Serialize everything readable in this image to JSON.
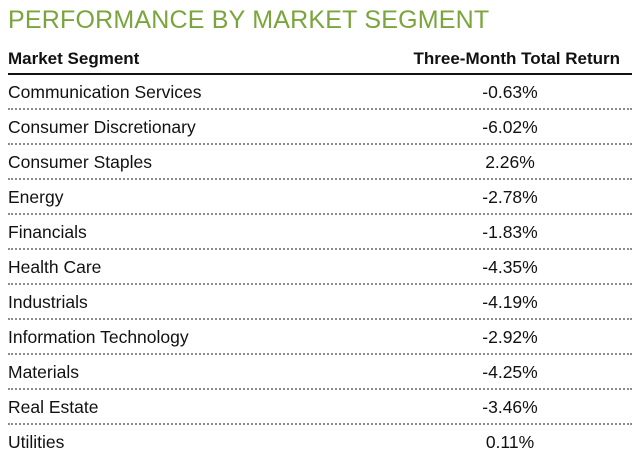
{
  "chart_data": {
    "type": "table",
    "title": "PERFORMANCE BY MARKET SEGMENT",
    "columns": [
      "Market Segment",
      "Three-Month Total Return"
    ],
    "rows": [
      {
        "segment": "Communication Services",
        "return": "-0.63%"
      },
      {
        "segment": "Consumer Discretionary",
        "return": "-6.02%"
      },
      {
        "segment": "Consumer Staples",
        "return": "2.26%"
      },
      {
        "segment": "Energy",
        "return": "-2.78%"
      },
      {
        "segment": "Financials",
        "return": "-1.83%"
      },
      {
        "segment": "Health Care",
        "return": "-4.35%"
      },
      {
        "segment": "Industrials",
        "return": "-4.19%"
      },
      {
        "segment": "Information Technology",
        "return": "-2.92%"
      },
      {
        "segment": "Materials",
        "return": "-4.25%"
      },
      {
        "segment": "Real Estate",
        "return": "-3.46%"
      },
      {
        "segment": "Utilities",
        "return": "0.11%"
      }
    ]
  },
  "colors": {
    "title": "#7aa53c",
    "text": "#111111",
    "row_divider": "#8c8c8c"
  }
}
